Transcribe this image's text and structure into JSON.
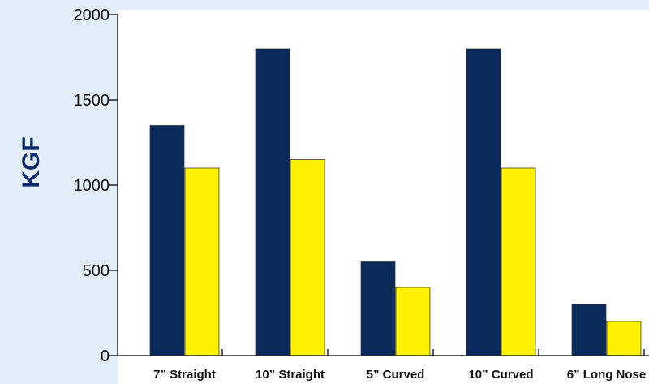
{
  "chart_data": {
    "type": "bar",
    "title": "",
    "xlabel": "",
    "ylabel": "KGF",
    "ylim": [
      0,
      2000
    ],
    "yticks": [
      0,
      500,
      1000,
      1500,
      2000
    ],
    "categories": [
      "7” Straight",
      "10” Straight",
      "5” Curved",
      "10” Curved",
      "6” Long Nose"
    ],
    "series": [
      {
        "color": "#0a2a5c",
        "values": [
          1350,
          1800,
          550,
          1800,
          300
        ]
      },
      {
        "color": "#fff200",
        "values": [
          1100,
          1150,
          400,
          1100,
          200
        ]
      }
    ],
    "grid": false,
    "legend": "none",
    "colors": {
      "background": "#e3eef8",
      "plot_background": "#ffffff",
      "axis": "#222222",
      "ylabel": "#0a2a6b"
    }
  }
}
